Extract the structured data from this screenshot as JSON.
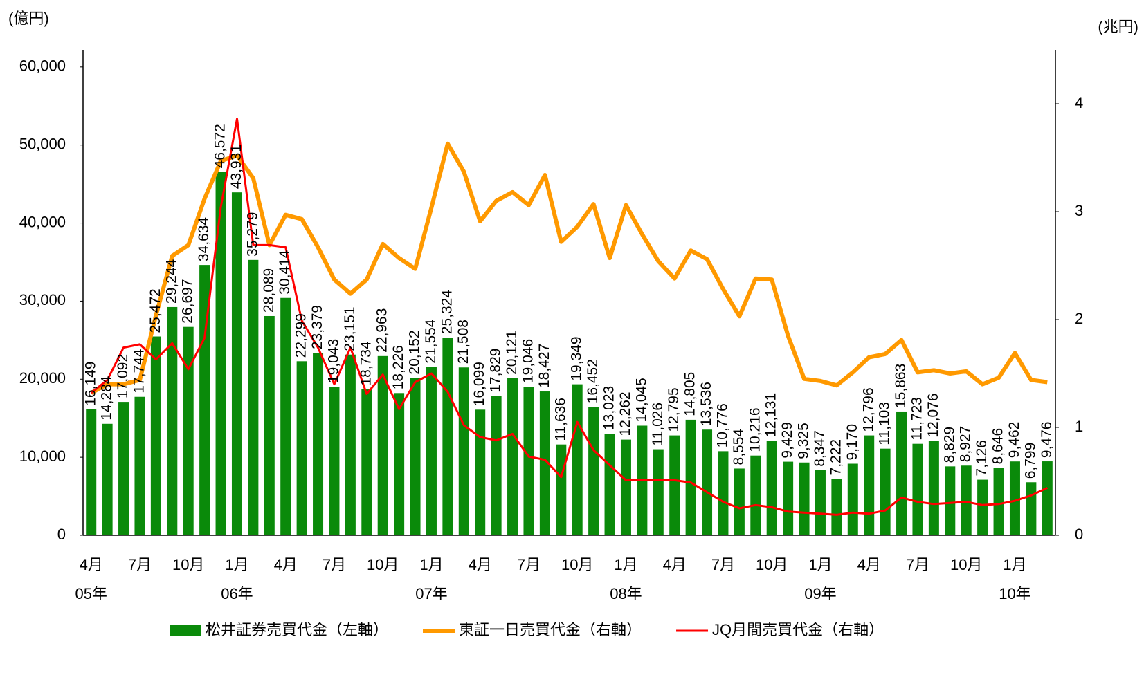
{
  "chart_data": {
    "type": "combo",
    "y_label": "(億円)",
    "y2_label": "(兆円)",
    "categories": [
      "4月",
      null,
      null,
      "7月",
      null,
      null,
      "10月",
      null,
      null,
      "1月",
      null,
      null,
      "4月",
      null,
      null,
      "7月",
      null,
      null,
      "10月",
      null,
      null,
      "1月",
      null,
      null,
      "4月",
      null,
      null,
      "7月",
      null,
      null,
      "10月",
      null,
      null,
      "1月",
      null,
      null,
      "4月",
      null,
      null,
      "7月",
      null,
      null,
      "10月",
      null,
      null,
      "1月",
      null,
      null,
      "4月",
      null,
      null,
      "7月",
      null,
      null,
      "10月",
      null,
      null,
      "1月",
      null,
      null
    ],
    "year_labels": [
      "05年",
      null,
      null,
      null,
      null,
      null,
      null,
      null,
      null,
      "06年",
      null,
      null,
      null,
      null,
      null,
      null,
      null,
      null,
      null,
      null,
      null,
      "07年",
      null,
      null,
      null,
      null,
      null,
      null,
      null,
      null,
      null,
      null,
      null,
      "08年",
      null,
      null,
      null,
      null,
      null,
      null,
      null,
      null,
      null,
      null,
      null,
      "09年",
      null,
      null,
      null,
      null,
      null,
      null,
      null,
      null,
      null,
      null,
      null,
      "10年",
      null,
      null
    ],
    "ylim": [
      0,
      62200
    ],
    "yticks": [
      0,
      {
        "value": 10000,
        "label": "10,000"
      },
      {
        "value": 20000,
        "label": "20,000"
      },
      {
        "value": 30000,
        "label": "30,000"
      },
      {
        "value": 40000,
        "label": "40,000"
      },
      {
        "value": 50000,
        "label": "50,000"
      },
      {
        "value": 60000,
        "label": "60,000"
      }
    ],
    "y2lim": [
      0,
      4.5
    ],
    "y2ticks": [
      0,
      1,
      2,
      3,
      4
    ],
    "legend": "bottom",
    "series": [
      {
        "name": "松井証券売買代金（左軸）",
        "type": "bar",
        "color": "#0a8a0a",
        "values": [
          16149,
          14284,
          17092,
          17744,
          25472,
          29244,
          26697,
          34634,
          46572,
          43931,
          35279,
          28089,
          30414,
          22299,
          23379,
          19043,
          23151,
          18734,
          22963,
          18226,
          20152,
          21554,
          25324,
          21508,
          16099,
          17829,
          20121,
          19046,
          18427,
          11636,
          19349,
          16452,
          13023,
          12262,
          14045,
          11026,
          12795,
          14805,
          13536,
          10776,
          8554,
          10216,
          12131,
          9429,
          9325,
          8347,
          7222,
          9170,
          12796,
          11103,
          15863,
          11723,
          12076,
          8829,
          8927,
          7126,
          8646,
          9462,
          6799,
          9476
        ],
        "value_labels": [
          "16,149",
          "14,284",
          "17,092",
          "17,744",
          "25,472",
          "29,244",
          "26,697",
          "34,634",
          "46,572",
          "43,931",
          "35,279",
          "28,089",
          "30,414",
          "22,299",
          "23,379",
          "19,043",
          "23,151",
          "18,734",
          "22,963",
          "18,226",
          "20,152",
          "21,554",
          "25,324",
          "21,508",
          "16,099",
          "17,829",
          "20,121",
          "19,046",
          "18,427",
          "11,636",
          "19,349",
          "16,452",
          "13,023",
          "12,262",
          "14,045",
          "11,026",
          "12,795",
          "14,805",
          "13,536",
          "10,776",
          "8,554",
          "10,216",
          "12,131",
          "9,429",
          "9,325",
          "8,347",
          "7,222",
          "9,170",
          "12,796",
          "11,103",
          "15,863",
          "11,723",
          "12,076",
          "8,829",
          "8,927",
          "7,126",
          "8,646",
          "9,462",
          "6,799",
          "9,476"
        ]
      },
      {
        "name": "東証一日売買代金（右軸）",
        "type": "line",
        "axis": "y2",
        "color": "#ff9900",
        "values": [
          1.32,
          1.4,
          1.4,
          1.44,
          2.04,
          2.59,
          2.69,
          3.12,
          3.47,
          3.52,
          3.31,
          2.69,
          2.97,
          2.93,
          2.67,
          2.37,
          2.24,
          2.37,
          2.7,
          2.57,
          2.47,
          3.04,
          3.63,
          3.37,
          2.91,
          3.1,
          3.18,
          3.06,
          3.34,
          2.72,
          2.86,
          3.07,
          2.57,
          3.06,
          2.79,
          2.54,
          2.38,
          2.64,
          2.56,
          2.28,
          2.03,
          2.38,
          2.37,
          1.85,
          1.45,
          1.43,
          1.39,
          1.51,
          1.65,
          1.68,
          1.81,
          1.51,
          1.53,
          1.5,
          1.52,
          1.4,
          1.46,
          1.69,
          1.44,
          1.42
        ]
      },
      {
        "name": "JQ月間売買代金（右軸）",
        "type": "line",
        "axis": "y2",
        "color": "#ff0000",
        "values": [
          1.32,
          1.44,
          1.74,
          1.77,
          1.63,
          1.78,
          1.54,
          1.83,
          3.04,
          3.86,
          2.69,
          2.69,
          2.67,
          1.99,
          1.74,
          1.4,
          1.74,
          1.31,
          1.49,
          1.17,
          1.42,
          1.5,
          1.33,
          1.02,
          0.91,
          0.88,
          0.94,
          0.73,
          0.7,
          0.54,
          1.05,
          0.79,
          0.65,
          0.51,
          0.51,
          0.51,
          0.51,
          0.49,
          0.4,
          0.31,
          0.25,
          0.28,
          0.26,
          0.22,
          0.21,
          0.2,
          0.19,
          0.21,
          0.2,
          0.23,
          0.35,
          0.31,
          0.29,
          0.3,
          0.31,
          0.28,
          0.29,
          0.32,
          0.37,
          0.44
        ]
      }
    ]
  }
}
